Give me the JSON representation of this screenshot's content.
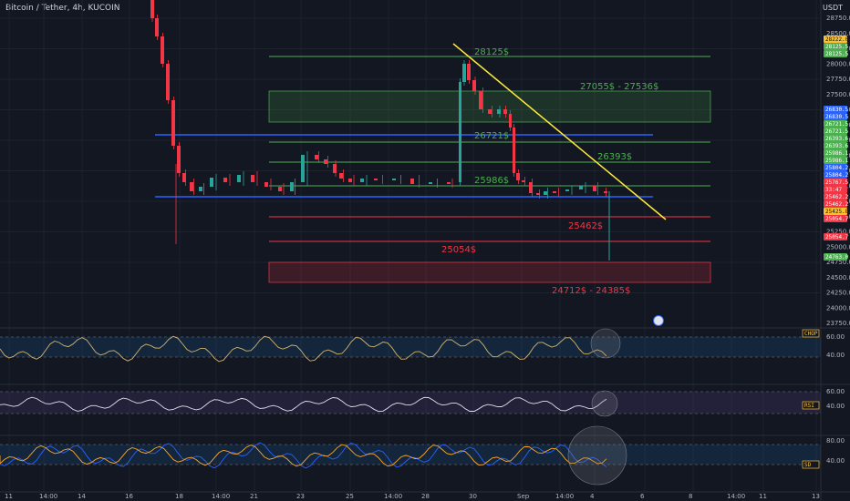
{
  "header": {
    "title": "Bitcoin / Tether, 4h, KUCOIN",
    "currency": "USDT"
  },
  "price_axis": [
    "28750.0",
    "28500.0",
    "28250.0",
    "28000.0",
    "27750.0",
    "27500.0",
    "27250.0",
    "27000.0",
    "26750.0",
    "26500.0",
    "26250.0",
    "26000.0",
    "25750.0",
    "25500.0",
    "25250.0",
    "25000.0",
    "24750.0",
    "24500.0",
    "24250.0",
    "24000.0",
    "23750.0"
  ],
  "levels": {
    "l28125": "28125$",
    "zone_top": "27055$ - 27536$",
    "l26721": "26721$",
    "l26393": "26393$",
    "l25986": "25986$",
    "l25462": "25462$",
    "l25054": "25054$",
    "zone_bottom": "24712$ - 24385$"
  },
  "price_tags": [
    {
      "text": "28222.0",
      "bg": "#fbc02d",
      "fg": "#131722"
    },
    {
      "text": "28125.5",
      "bg": "#4caf50",
      "fg": "#fff"
    },
    {
      "text": "28125.5",
      "bg": "#4caf50",
      "fg": "#fff"
    },
    {
      "text": "26830.5",
      "bg": "#2962ff",
      "fg": "#fff"
    },
    {
      "text": "26830.5",
      "bg": "#2962ff",
      "fg": "#fff"
    },
    {
      "text": "26721.5",
      "bg": "#4caf50",
      "fg": "#fff"
    },
    {
      "text": "26721.5",
      "bg": "#4caf50",
      "fg": "#fff"
    },
    {
      "text": "26393.6",
      "bg": "#4caf50",
      "fg": "#fff"
    },
    {
      "text": "26393.6",
      "bg": "#4caf50",
      "fg": "#fff"
    },
    {
      "text": "25986.1",
      "bg": "#4caf50",
      "fg": "#fff"
    },
    {
      "text": "25986.1",
      "bg": "#4caf50",
      "fg": "#fff"
    },
    {
      "text": "25804.2",
      "bg": "#2962ff",
      "fg": "#fff"
    },
    {
      "text": "25804.2",
      "bg": "#2962ff",
      "fg": "#fff"
    },
    {
      "text": "25767.5",
      "bg": "#f23645",
      "fg": "#fff"
    },
    {
      "text": "33:47",
      "bg": "#f23645",
      "fg": "#fff"
    },
    {
      "text": "25462.2",
      "bg": "#f23645",
      "fg": "#fff"
    },
    {
      "text": "25462.2",
      "bg": "#f23645",
      "fg": "#fff"
    },
    {
      "text": "25425.8",
      "bg": "#fbc02d",
      "fg": "#131722"
    },
    {
      "text": "25054.7",
      "bg": "#f23645",
      "fg": "#fff"
    },
    {
      "text": "25054.7",
      "bg": "#f23645",
      "fg": "#fff"
    },
    {
      "text": "24763.0",
      "bg": "#4caf50",
      "fg": "#fff"
    }
  ],
  "indicators": [
    {
      "tag": "CHOP",
      "axis": [
        "60.00",
        "40.00"
      ]
    },
    {
      "tag": "RSI",
      "axis": [
        "60.00",
        "40.00"
      ]
    },
    {
      "tag": "SD",
      "axis": [
        "80.00",
        "40.00"
      ]
    }
  ],
  "time_axis": [
    "11",
    "14:00",
    "14",
    "16",
    "18",
    "14:00",
    "21",
    "23",
    "25",
    "14:00",
    "28",
    "30",
    "Sep",
    "14:00",
    "4",
    "6",
    "8",
    "14:00",
    "11",
    "13"
  ],
  "colors": {
    "bg": "#131722",
    "up": "#26a69a",
    "down": "#f23645",
    "green_line": "#4caf50",
    "red_line": "#f23645",
    "blue_line": "#2962ff",
    "trend": "#ffeb3b"
  }
}
